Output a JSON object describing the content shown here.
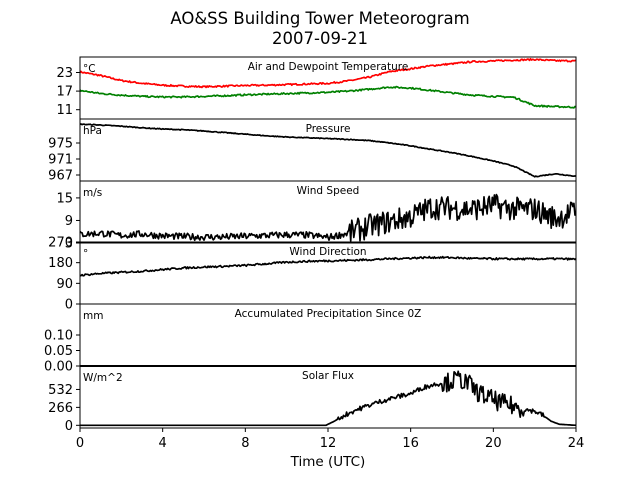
{
  "title": "AO&SS Building Tower Meteorogram",
  "date": "2007-09-21",
  "xlabel": "Time (UTC)",
  "x_ticks": [
    0,
    4,
    8,
    12,
    16,
    20,
    24
  ],
  "chart_data": [
    {
      "type": "line",
      "title": "Air and Dewpoint Temperature",
      "unit_label": "°C",
      "ylim": [
        8,
        28
      ],
      "yticks": [
        11,
        17,
        23
      ],
      "xlim": [
        0,
        24
      ],
      "series": [
        {
          "color": "#ff0000",
          "x": [
            0,
            1,
            2,
            3,
            4,
            5,
            6,
            7,
            8,
            9,
            10,
            11,
            12,
            13,
            14,
            15,
            16,
            17,
            18,
            19,
            20,
            21,
            22,
            23,
            24
          ],
          "y": [
            23.2,
            22.0,
            20.4,
            19.5,
            18.9,
            18.6,
            18.4,
            18.6,
            18.8,
            18.9,
            19.1,
            19.3,
            19.5,
            20.3,
            21.5,
            23.3,
            24.2,
            25.2,
            25.8,
            26.5,
            26.7,
            27.0,
            27.2,
            26.8,
            26.7
          ]
        },
        {
          "color": "#008000",
          "x": [
            0,
            1,
            2,
            3,
            4,
            5,
            6,
            7,
            8,
            9,
            10,
            11,
            12,
            13,
            14,
            15,
            16,
            17,
            18,
            19,
            20,
            21,
            22,
            23,
            24
          ],
          "y": [
            17.2,
            16.2,
            15.7,
            15.3,
            15.1,
            15.1,
            15.3,
            15.5,
            15.8,
            16.0,
            16.2,
            16.4,
            16.6,
            17.0,
            17.6,
            18.3,
            18.0,
            17.2,
            16.4,
            15.7,
            15.3,
            15.0,
            12.3,
            12.0,
            11.8
          ]
        }
      ]
    },
    {
      "type": "line",
      "title": "Pressure",
      "unit_label": "hPa",
      "ylim": [
        965.5,
        981
      ],
      "yticks": [
        967,
        971,
        975
      ],
      "xlim": [
        0,
        24
      ],
      "series": [
        {
          "color": "#000000",
          "x": [
            0,
            1,
            2,
            3,
            4,
            5,
            6,
            7,
            8,
            9,
            10,
            11,
            12,
            13,
            14,
            15,
            16,
            17,
            18,
            19,
            20,
            21,
            22,
            23,
            24
          ],
          "y": [
            979.7,
            979.5,
            979.2,
            978.8,
            978.5,
            978.3,
            978.0,
            977.6,
            977.2,
            976.8,
            976.5,
            976.3,
            976.1,
            975.9,
            975.6,
            975.0,
            974.3,
            973.4,
            972.6,
            971.6,
            970.5,
            969.2,
            966.6,
            967.3,
            966.7
          ]
        }
      ]
    },
    {
      "type": "line",
      "title": "Wind Speed",
      "unit_label": "m/s",
      "ylim": [
        3,
        19.5
      ],
      "yticks": [
        3,
        9,
        15
      ],
      "xlim": [
        0,
        24
      ],
      "series": [
        {
          "color": "#000000",
          "x": [
            0,
            1,
            2,
            3,
            4,
            5,
            6,
            7,
            8,
            9,
            10,
            11,
            12,
            13,
            14,
            15,
            16,
            17,
            18,
            19,
            20,
            21,
            22,
            23,
            24
          ],
          "y": [
            5.3,
            5.6,
            5.0,
            5.4,
            4.9,
            4.7,
            4.6,
            4.6,
            4.8,
            5.0,
            5.2,
            5.1,
            4.5,
            5.6,
            7.5,
            8.7,
            10.0,
            12.5,
            12.3,
            12.0,
            13.0,
            12.0,
            12.0,
            9.5,
            11.5
          ]
        }
      ]
    },
    {
      "type": "line",
      "title": "Wind Direction",
      "unit_label": "°",
      "ylim": [
        0,
        270
      ],
      "yticks": [
        0,
        90,
        180,
        270
      ],
      "xlim": [
        0,
        24
      ],
      "series": [
        {
          "color": "#000000",
          "x": [
            0,
            1,
            2,
            3,
            4,
            5,
            6,
            7,
            8,
            9,
            10,
            11,
            12,
            13,
            14,
            15,
            16,
            17,
            18,
            19,
            20,
            21,
            22,
            23,
            24
          ],
          "y": [
            125,
            133,
            138,
            143,
            150,
            157,
            161,
            164,
            168,
            175,
            182,
            186,
            188,
            190,
            193,
            197,
            200,
            203,
            202,
            198,
            197,
            196,
            196,
            197,
            195
          ]
        }
      ]
    },
    {
      "type": "line",
      "title": "Accumulated Precipitation Since 0Z",
      "unit_label": "mm",
      "ylim": [
        0,
        0.2
      ],
      "yticks": [
        0.0,
        0.05,
        0.1
      ],
      "ytick_labels": [
        "0.00",
        "0.05",
        "0.10"
      ],
      "xlim": [
        0,
        24
      ],
      "series": [
        {
          "color": "#000000",
          "x": [
            0,
            24
          ],
          "y": [
            0,
            0
          ]
        }
      ]
    },
    {
      "type": "line",
      "title": "Solar Flux",
      "unit_label": "W/m^2",
      "ylim": [
        -40,
        880
      ],
      "yticks": [
        0,
        266,
        532
      ],
      "xlim": [
        0,
        24
      ],
      "series": [
        {
          "color": "#000000",
          "x": [
            0,
            6,
            11.9,
            12.3,
            12.8,
            13.3,
            14,
            14.6,
            15.3,
            16,
            16.6,
            17.2,
            17.8,
            18.3,
            18.8,
            19.2,
            19.6,
            20,
            20.4,
            20.8,
            21.2,
            21.6,
            22.0,
            22.4,
            22.8,
            23.2,
            24
          ],
          "y": [
            0,
            0,
            0,
            60,
            150,
            220,
            300,
            360,
            420,
            470,
            560,
            610,
            640,
            690,
            620,
            500,
            430,
            380,
            330,
            300,
            260,
            230,
            210,
            150,
            60,
            15,
            0
          ]
        }
      ]
    }
  ]
}
